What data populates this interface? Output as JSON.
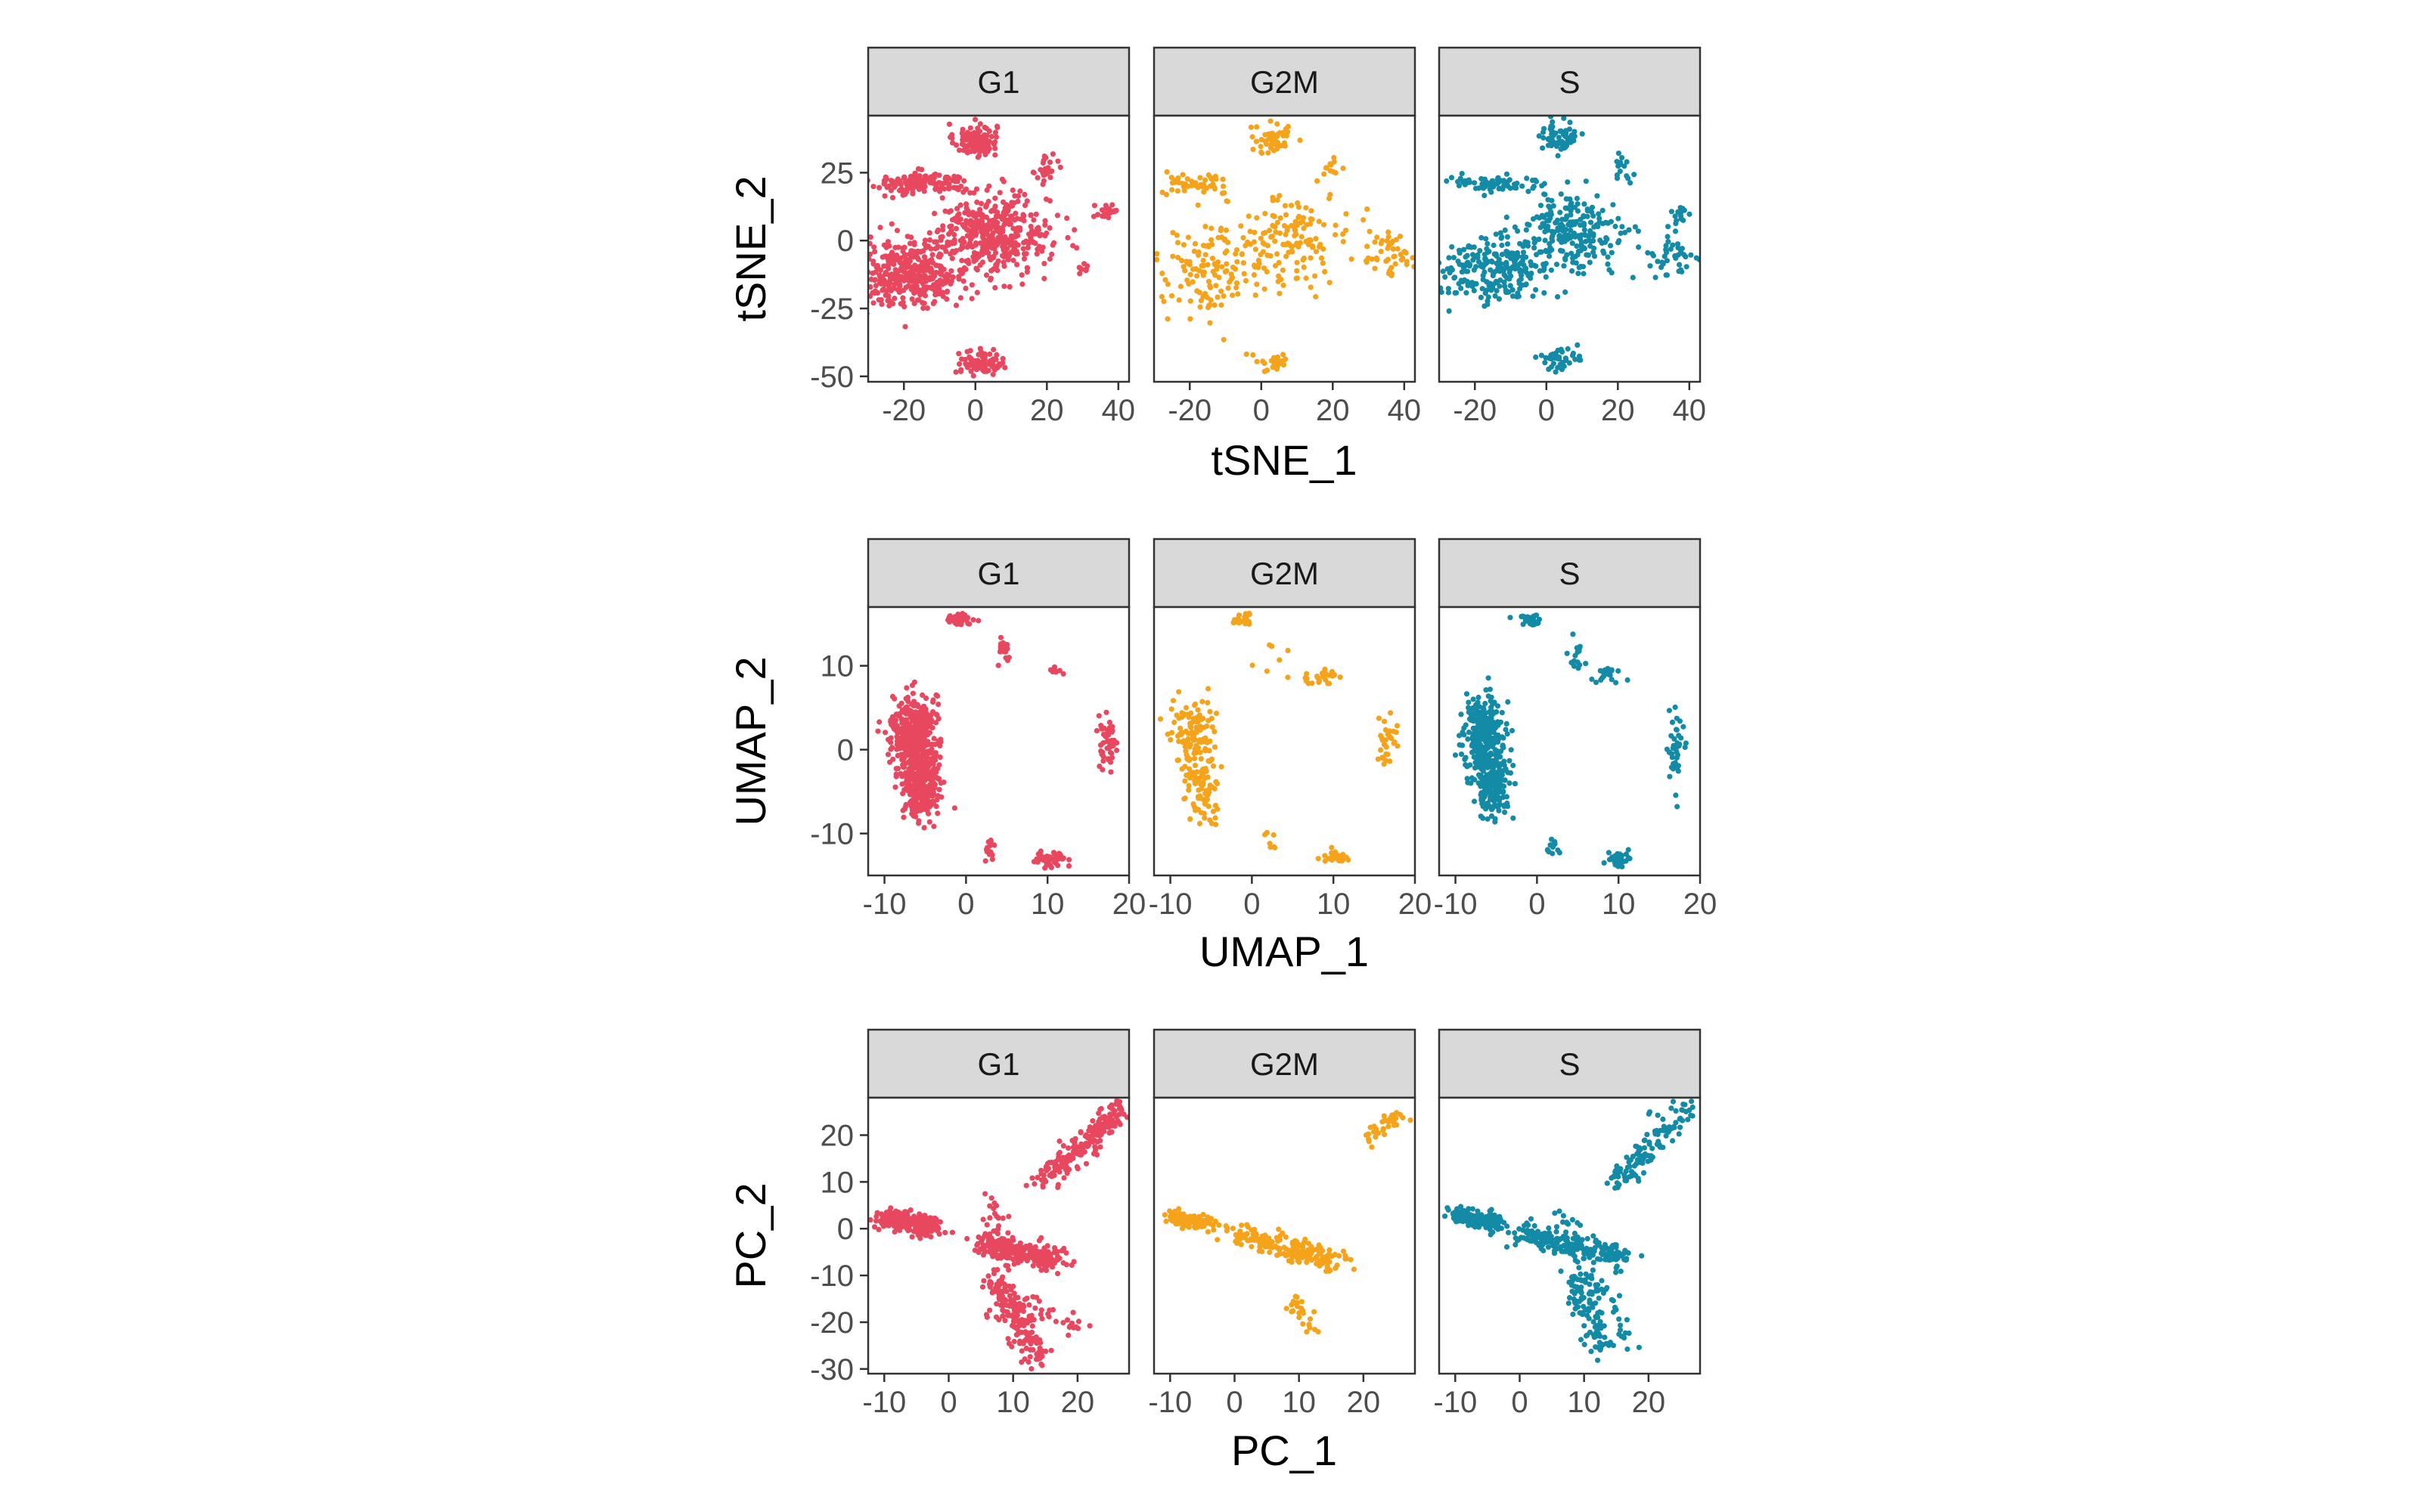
{
  "colors": {
    "G1": "#e8485f",
    "G2M": "#f5a31a",
    "S": "#138aa6",
    "strip_fill": "#d9d9d9",
    "border": "#333333"
  },
  "chart_data": [
    {
      "type": "scatter",
      "xlabel": "tSNE_1",
      "ylabel": "tSNE_2",
      "xlim": [
        -30,
        43
      ],
      "ylim": [
        -52,
        46
      ],
      "xticks": [
        -20,
        0,
        20,
        40
      ],
      "yticks": [
        -50,
        -25,
        0,
        25
      ],
      "xtick_labels": [
        "-20",
        "0",
        "20",
        "40"
      ],
      "ytick_labels": [
        "-50",
        "-25",
        "0",
        "25"
      ],
      "facets": [
        {
          "label": "G1",
          "color_key": "G1",
          "clusters": [
            {
              "cx": 0,
              "cy": 37,
              "sx": 3,
              "sy": 3,
              "n": 120
            },
            {
              "cx": -15,
              "cy": 21,
              "sx": 7,
              "sy": 2,
              "n": 160
            },
            {
              "cx": 20,
              "cy": 26,
              "sx": 1.5,
              "sy": 3,
              "n": 25
            },
            {
              "cx": 37,
              "cy": 11,
              "sx": 1.5,
              "sy": 2.5,
              "n": 25
            },
            {
              "cx": -18,
              "cy": -12,
              "sx": 8,
              "sy": 6,
              "n": 380
            },
            {
              "cx": 5,
              "cy": 2,
              "sx": 8,
              "sy": 7,
              "n": 420
            },
            {
              "cx": 30,
              "cy": -10,
              "sx": 1,
              "sy": 1.5,
              "n": 8
            },
            {
              "cx": 2,
              "cy": -45,
              "sx": 3,
              "sy": 2,
              "n": 90
            }
          ]
        },
        {
          "label": "G2M",
          "color_key": "G2M",
          "clusters": [
            {
              "cx": 3,
              "cy": 37,
              "sx": 3,
              "sy": 3,
              "n": 50
            },
            {
              "cx": -18,
              "cy": 21,
              "sx": 5,
              "sy": 2,
              "n": 45
            },
            {
              "cx": 20,
              "cy": 26,
              "sx": 1.5,
              "sy": 3,
              "n": 12
            },
            {
              "cx": -15,
              "cy": -12,
              "sx": 8,
              "sy": 8,
              "n": 120
            },
            {
              "cx": 8,
              "cy": 0,
              "sx": 9,
              "sy": 8,
              "n": 150
            },
            {
              "cx": 36,
              "cy": -5,
              "sx": 4,
              "sy": 4,
              "n": 45
            },
            {
              "cx": 4,
              "cy": -45,
              "sx": 3,
              "sy": 2,
              "n": 25
            }
          ]
        },
        {
          "label": "S",
          "color_key": "S",
          "clusters": [
            {
              "cx": 3,
              "cy": 38,
              "sx": 3,
              "sy": 3,
              "n": 60
            },
            {
              "cx": -15,
              "cy": 21,
              "sx": 7,
              "sy": 2,
              "n": 70
            },
            {
              "cx": 21,
              "cy": 26,
              "sx": 1.5,
              "sy": 3,
              "n": 15
            },
            {
              "cx": 37,
              "cy": 10,
              "sx": 1.5,
              "sy": 3,
              "n": 15
            },
            {
              "cx": -16,
              "cy": -12,
              "sx": 8,
              "sy": 6,
              "n": 220
            },
            {
              "cx": 7,
              "cy": 2,
              "sx": 8,
              "sy": 7,
              "n": 250
            },
            {
              "cx": 36,
              "cy": -5,
              "sx": 3,
              "sy": 4,
              "n": 40
            },
            {
              "cx": 3,
              "cy": -44,
              "sx": 3,
              "sy": 2,
              "n": 40
            }
          ]
        }
      ]
    },
    {
      "type": "scatter",
      "xlabel": "UMAP_1",
      "ylabel": "UMAP_2",
      "xlim": [
        -12,
        20
      ],
      "ylim": [
        -15,
        17
      ],
      "xticks": [
        -10,
        0,
        10,
        20
      ],
      "yticks": [
        -10,
        0,
        10
      ],
      "xtick_labels": [
        "-10",
        "0",
        "10",
        "20"
      ],
      "ytick_labels": [
        "-10",
        "0",
        "10"
      ],
      "facets": [
        {
          "label": "G1",
          "color_key": "G1",
          "clusters": [
            {
              "cx": -1,
              "cy": 15.5,
              "sx": 0.8,
              "sy": 0.3,
              "n": 40
            },
            {
              "cx": 4.5,
              "cy": 12,
              "sx": 0.4,
              "sy": 0.8,
              "n": 20
            },
            {
              "cx": 11,
              "cy": 9.5,
              "sx": 0.4,
              "sy": 0.3,
              "n": 8
            },
            {
              "cx": -6.5,
              "cy": 2,
              "sx": 1.3,
              "sy": 2.2,
              "n": 380
            },
            {
              "cx": -5.5,
              "cy": -4,
              "sx": 1.1,
              "sy": 2.2,
              "n": 320
            },
            {
              "cx": 17.3,
              "cy": 1,
              "sx": 0.5,
              "sy": 1.5,
              "n": 50
            },
            {
              "cx": 3,
              "cy": -12,
              "sx": 0.3,
              "sy": 0.8,
              "n": 15
            },
            {
              "cx": 10.5,
              "cy": -13,
              "sx": 1,
              "sy": 0.4,
              "n": 60
            }
          ]
        },
        {
          "label": "G2M",
          "color_key": "G2M",
          "clusters": [
            {
              "cx": -1,
              "cy": 15.5,
              "sx": 0.8,
              "sy": 0.3,
              "n": 20
            },
            {
              "cx": 3,
              "cy": 11,
              "sx": 1,
              "sy": 1,
              "n": 6
            },
            {
              "cx": 8,
              "cy": 8.5,
              "sx": 1.5,
              "sy": 0.5,
              "n": 25
            },
            {
              "cx": -7,
              "cy": 2,
              "sx": 1.5,
              "sy": 2,
              "n": 110
            },
            {
              "cx": -6,
              "cy": -4,
              "sx": 1.2,
              "sy": 2,
              "n": 90
            },
            {
              "cx": 16.5,
              "cy": 1,
              "sx": 0.6,
              "sy": 1.5,
              "n": 30
            },
            {
              "cx": 2,
              "cy": -11,
              "sx": 0.5,
              "sy": 1,
              "n": 8
            },
            {
              "cx": 10,
              "cy": -12.7,
              "sx": 0.8,
              "sy": 0.4,
              "n": 25
            }
          ]
        },
        {
          "label": "S",
          "color_key": "S",
          "clusters": [
            {
              "cx": -1,
              "cy": 15.5,
              "sx": 0.8,
              "sy": 0.3,
              "n": 30
            },
            {
              "cx": 5,
              "cy": 11,
              "sx": 0.8,
              "sy": 1,
              "n": 15
            },
            {
              "cx": 9,
              "cy": 9,
              "sx": 1,
              "sy": 0.5,
              "n": 20
            },
            {
              "cx": -6.5,
              "cy": 2,
              "sx": 1.3,
              "sy": 2.2,
              "n": 250
            },
            {
              "cx": -5.5,
              "cy": -4,
              "sx": 1.1,
              "sy": 2,
              "n": 200
            },
            {
              "cx": 17,
              "cy": 0,
              "sx": 0.5,
              "sy": 2,
              "n": 40
            },
            {
              "cx": 2,
              "cy": -11.5,
              "sx": 0.4,
              "sy": 0.6,
              "n": 12
            },
            {
              "cx": 10,
              "cy": -13,
              "sx": 0.8,
              "sy": 0.4,
              "n": 40
            }
          ]
        }
      ]
    },
    {
      "type": "scatter",
      "xlabel": "PC_1",
      "ylabel": "PC_2",
      "xlim": [
        -12.5,
        28
      ],
      "ylim": [
        -31,
        28
      ],
      "xticks": [
        -10,
        0,
        10,
        20
      ],
      "yticks": [
        -30,
        -20,
        -10,
        0,
        10,
        20
      ],
      "xtick_labels": [
        "-10",
        "0",
        "10",
        "20"
      ],
      "ytick_labels": [
        "-30",
        "-20",
        "-10",
        "0",
        "10",
        "20"
      ],
      "facets": [
        {
          "label": "G1",
          "color_key": "G1",
          "arms": [
            {
              "x0": -10,
              "y0": 2.5,
              "x1": -2,
              "y1": 0,
              "n": 250,
              "spread": 1
            },
            {
              "x0": 5,
              "y0": -3,
              "x1": 17,
              "y1": -7,
              "n": 220,
              "spread": 1.3
            },
            {
              "x0": 15,
              "y0": 10,
              "x1": 27,
              "y1": 26,
              "n": 200,
              "spread": 1.2
            },
            {
              "x0": 7,
              "y0": -10,
              "x1": 14,
              "y1": -28,
              "n": 180,
              "spread": 1.3
            },
            {
              "x0": 7,
              "y0": 6,
              "x1": 9,
              "y1": -6,
              "n": 30,
              "spread": 1
            },
            {
              "x0": 12,
              "y0": -14,
              "x1": 20,
              "y1": -22,
              "n": 25,
              "spread": 1
            }
          ]
        },
        {
          "label": "G2M",
          "color_key": "G2M",
          "arms": [
            {
              "x0": -10,
              "y0": 2.5,
              "x1": -4,
              "y1": 1,
              "n": 100,
              "spread": 0.8
            },
            {
              "x0": -1,
              "y0": -1,
              "x1": 16,
              "y1": -7,
              "n": 200,
              "spread": 1.3
            },
            {
              "x0": 21,
              "y0": 19,
              "x1": 26,
              "y1": 25,
              "n": 40,
              "spread": 0.8
            },
            {
              "x0": 9,
              "y0": -15,
              "x1": 12,
              "y1": -22,
              "n": 25,
              "spread": 0.8
            }
          ]
        },
        {
          "label": "S",
          "color_key": "S",
          "arms": [
            {
              "x0": -10,
              "y0": 3,
              "x1": -3,
              "y1": 1,
              "n": 160,
              "spread": 0.9
            },
            {
              "x0": 0,
              "y0": -1,
              "x1": 16,
              "y1": -6,
              "n": 220,
              "spread": 1.3
            },
            {
              "x0": 15,
              "y0": 10,
              "x1": 26,
              "y1": 26,
              "n": 120,
              "spread": 1.2
            },
            {
              "x0": 8,
              "y0": -10,
              "x1": 13,
              "y1": -26,
              "n": 90,
              "spread": 1.2
            },
            {
              "x0": 6,
              "y0": 5,
              "x1": 9,
              "y1": -5,
              "n": 15,
              "spread": 1
            },
            {
              "x0": 10,
              "y0": -8,
              "x1": 17,
              "y1": -24,
              "n": 40,
              "spread": 1
            }
          ]
        }
      ]
    }
  ]
}
